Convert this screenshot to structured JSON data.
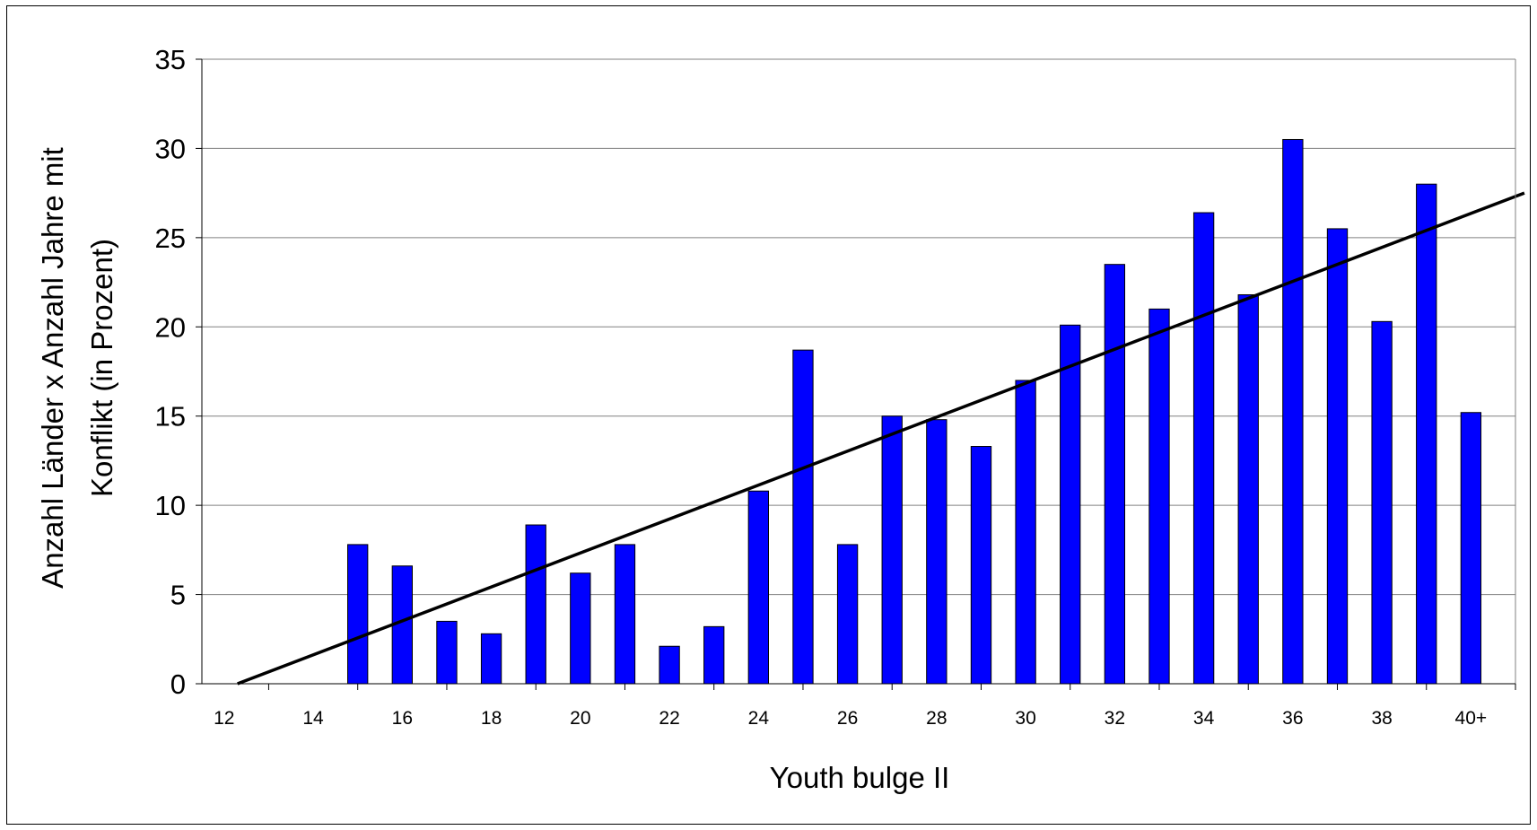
{
  "chart_data": {
    "type": "bar",
    "xlabel": "Youth bulge II",
    "ylabel_lines": [
      "Anzahl Länder x Anzahl Jahre mit",
      "Konflikt  (in Prozent)"
    ],
    "ylim": [
      0,
      35
    ],
    "yticks": [
      "0",
      "5",
      "10",
      "15",
      "20",
      "25",
      "30",
      "35"
    ],
    "xtick_labels": [
      "12",
      "14",
      "16",
      "18",
      "20",
      "22",
      "24",
      "26",
      "28",
      "30",
      "32",
      "34",
      "36",
      "38",
      "40+"
    ],
    "categories": [
      "12",
      "13",
      "14",
      "15",
      "16",
      "17",
      "18",
      "19",
      "20",
      "21",
      "22",
      "23",
      "24",
      "25",
      "26",
      "27",
      "28",
      "29",
      "30",
      "31",
      "32",
      "33",
      "34",
      "35",
      "36",
      "37",
      "38",
      "39",
      "40+"
    ],
    "values": [
      0,
      0,
      0,
      7.8,
      6.6,
      3.5,
      2.8,
      8.9,
      6.2,
      7.8,
      2.1,
      3.2,
      10.8,
      18.7,
      7.8,
      15.0,
      14.8,
      13.3,
      17.0,
      20.1,
      23.5,
      21.0,
      26.4,
      21.8,
      30.5,
      25.5,
      20.3,
      28.0,
      15.2
    ],
    "trend_line": {
      "start": [
        12.3,
        0
      ],
      "end": [
        41.2,
        27.5
      ]
    },
    "grid": true,
    "legend": "none",
    "colors": {
      "bar": "#0000FF",
      "bar_edge": "#000000",
      "line": "#000000",
      "grid": "#808080"
    }
  }
}
